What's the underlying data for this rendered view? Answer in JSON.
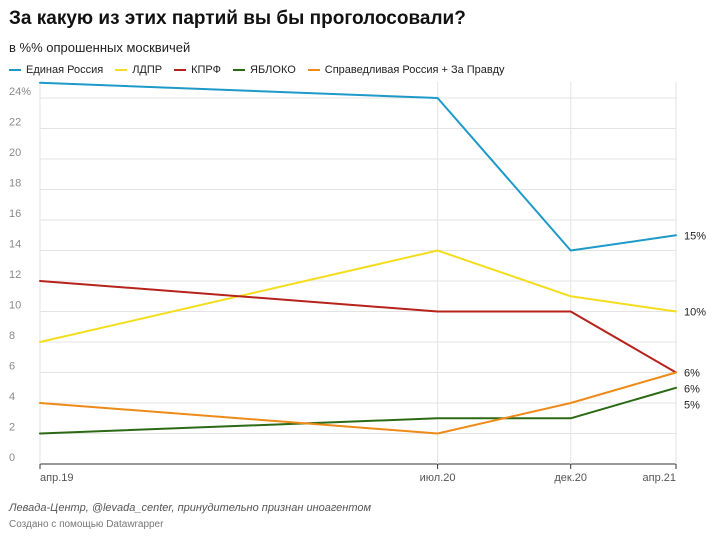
{
  "header": {
    "title": "За какую из этих партий вы бы проголосовали?",
    "subtitle": "в %% опрошенных москвичей"
  },
  "footer": {
    "source": "Левада-Центр, @levada_center, принудительно признан иноагентом",
    "credit": "Создано с помощью Datawrapper"
  },
  "chart_data": {
    "type": "line",
    "title": "За какую из этих партий вы бы проголосовали?",
    "subtitle": "в %% опрошенных москвичей",
    "x": [
      "апр.19",
      "июл.20",
      "дек.20",
      "апр.21"
    ],
    "x_dates": [
      "2019-04-01",
      "2020-07-01",
      "2020-12-01",
      "2021-04-01"
    ],
    "ylim": [
      0,
      24
    ],
    "y_ticks": [
      0,
      2,
      4,
      6,
      8,
      10,
      12,
      14,
      16,
      18,
      20,
      22,
      24
    ],
    "y_tick_labels": [
      "0",
      "2",
      "4",
      "6",
      "8",
      "10",
      "12",
      "14",
      "16",
      "18",
      "20",
      "22",
      "24%"
    ],
    "grid": true,
    "legend_position": "top-left",
    "series": [
      {
        "name": "Единая Россия",
        "color": "#1d9ac7",
        "values": [
          25,
          24,
          14,
          15
        ],
        "end_label": "15%"
      },
      {
        "name": "ЛДПР",
        "color": "#f4dd1c",
        "values": [
          8,
          14,
          11,
          10
        ],
        "end_label": "10%"
      },
      {
        "name": "КПРФ",
        "color": "#b7221b",
        "values": [
          12,
          10,
          10,
          6
        ],
        "end_label": "6%"
      },
      {
        "name": "ЯБЛОКО",
        "color": "#2b6a14",
        "values": [
          2,
          3,
          3,
          5
        ],
        "end_label": "5%"
      },
      {
        "name": "Справедливая Россия + За Правду",
        "color": "#ee8a17",
        "values": [
          4,
          2,
          4,
          6
        ],
        "end_label": "6%"
      }
    ]
  }
}
